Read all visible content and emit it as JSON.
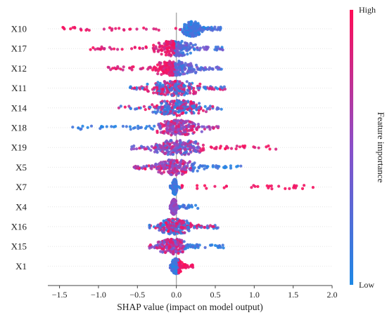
{
  "chart_data": {
    "type": "scatter",
    "title": "",
    "xlabel": "SHAP value (impact on model output)",
    "ylabel": "",
    "xlim": [
      -1.65,
      2.0
    ],
    "xticks": [
      "−1.5",
      "−1.0",
      "−0.5",
      "0.0",
      "0.5",
      "1.0",
      "1.5",
      "2.0"
    ],
    "xtick_values": [
      -1.5,
      -1.0,
      -0.5,
      0.0,
      0.5,
      1.0,
      1.5,
      2.0
    ],
    "grid": false,
    "zero_line": true,
    "colorbar": {
      "title": "Feature importance",
      "high_label": "High",
      "low_label": "Low",
      "low_color": "#1E88E5",
      "high_color": "#FF0D57"
    },
    "features": [
      {
        "name": "X10",
        "min": -1.55,
        "max": 0.58,
        "bulk": [
          0.1,
          0.3
        ],
        "skew": "left-high"
      },
      {
        "name": "X17",
        "min": -1.12,
        "max": 0.62,
        "bulk": [
          -0.25,
          0.2
        ],
        "skew": "left-high"
      },
      {
        "name": "X12",
        "min": -0.9,
        "max": 0.58,
        "bulk": [
          -0.25,
          0.2
        ],
        "skew": "left-high"
      },
      {
        "name": "X11",
        "min": -0.6,
        "max": 0.68,
        "bulk": [
          -0.3,
          0.25
        ],
        "skew": "mixed"
      },
      {
        "name": "X14",
        "min": -0.75,
        "max": 0.58,
        "bulk": [
          -0.3,
          0.3
        ],
        "skew": "mixed"
      },
      {
        "name": "X18",
        "min": -1.35,
        "max": 0.55,
        "bulk": [
          -0.25,
          0.25
        ],
        "skew": "left-low"
      },
      {
        "name": "X19",
        "min": -0.58,
        "max": 1.28,
        "bulk": [
          -0.25,
          0.3
        ],
        "skew": "right-high"
      },
      {
        "name": "X5",
        "min": -0.55,
        "max": 0.85,
        "bulk": [
          -0.25,
          0.2
        ],
        "skew": "right-low"
      },
      {
        "name": "X7",
        "min": -0.08,
        "max": 1.85,
        "bulk": [
          -0.05,
          0.0
        ],
        "skew": "right-high"
      },
      {
        "name": "X4",
        "min": -0.08,
        "max": 0.3,
        "bulk": [
          -0.06,
          0.0
        ],
        "skew": "left-mid"
      },
      {
        "name": "X16",
        "min": -0.35,
        "max": 0.55,
        "bulk": [
          -0.2,
          0.15
        ],
        "skew": "mixed"
      },
      {
        "name": "X15",
        "min": -0.35,
        "max": 0.62,
        "bulk": [
          -0.2,
          0.1
        ],
        "skew": "right-low"
      },
      {
        "name": "X1",
        "min": -0.08,
        "max": 0.22,
        "bulk": [
          -0.05,
          0.05
        ],
        "skew": "right-high"
      }
    ]
  }
}
